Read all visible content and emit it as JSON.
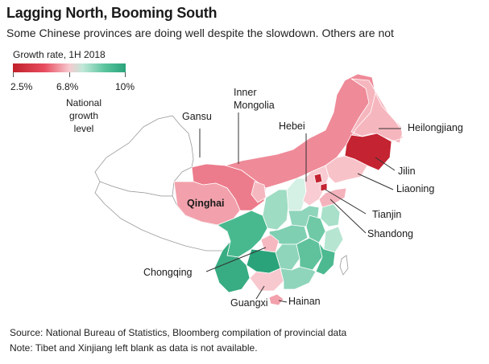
{
  "title": "Lagging North, Booming South",
  "subtitle": "Some Chinese provinces are doing well despite the slowdown. Others are not",
  "legend": {
    "title": "Growth rate, 1H 2018",
    "ticks": [
      "2.5%",
      "6.8%",
      "10%"
    ],
    "note": "National growth level",
    "colors": {
      "low": "#c0202a",
      "mid": "#f7c9cf",
      "high": "#2aa37a"
    }
  },
  "labels": {
    "gansu": "Gansu",
    "inner_mongolia_1": "Inner",
    "inner_mongolia_2": "Mongolia",
    "hebei": "Hebei",
    "heilongjiang": "Heilongjiang",
    "qinghai": "Qinghai",
    "jilin": "Jilin",
    "liaoning": "Liaoning",
    "tianjin": "Tianjin",
    "shandong": "Shandong",
    "chongqing": "Chongqing",
    "guangxi": "Guangxi",
    "hainan": "Hainan"
  },
  "source_line1": "Source: National Bureau of Statistics, Bloomberg compilation of provincial data",
  "source_line2": "Note: Tibet and Xinjiang left blank as data is not available."
}
